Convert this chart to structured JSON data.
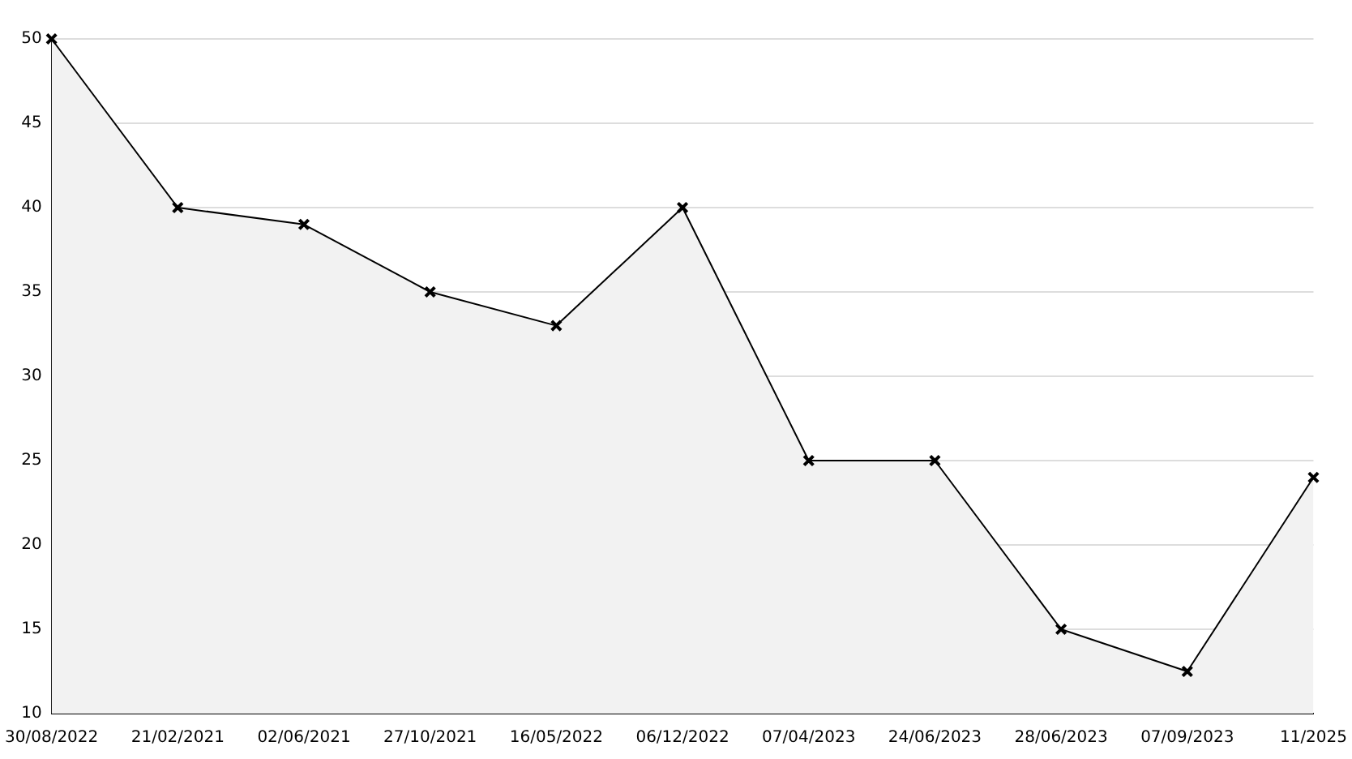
{
  "chart_data": {
    "type": "area",
    "categories": [
      "30/08/2022",
      "21/02/2021",
      "02/06/2021",
      "27/10/2021",
      "16/05/2022",
      "06/12/2022",
      "07/04/2023",
      "24/06/2023",
      "28/06/2023",
      "07/09/2023",
      "11/2025"
    ],
    "series": [
      {
        "color": "#000000",
        "values": [
          50,
          40,
          39,
          35,
          33,
          40,
          25,
          25,
          15,
          12.5,
          24
        ]
      }
    ],
    "ylim": [
      10,
      50
    ],
    "yticks": [
      10,
      15,
      20,
      25,
      30,
      35,
      40,
      45,
      50
    ],
    "grid": "y",
    "legend": false,
    "marker": "cross",
    "line_style": "solid"
  }
}
